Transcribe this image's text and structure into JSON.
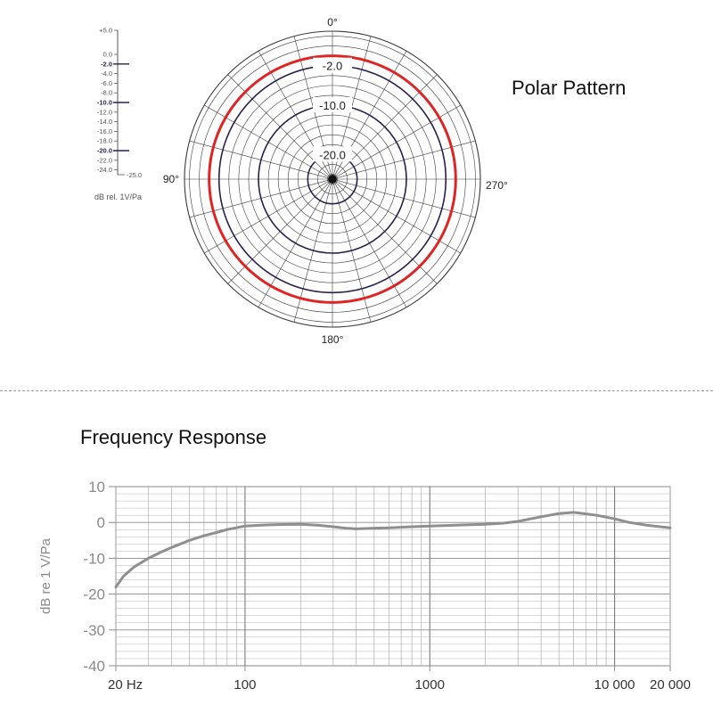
{
  "chart_data": [
    {
      "id": "polar",
      "type": "polar",
      "title": "Polar Pattern",
      "angle_labels": [
        {
          "angle": 0,
          "text": "0°"
        },
        {
          "angle": 90,
          "text": "90°"
        },
        {
          "angle": 180,
          "text": "180°"
        },
        {
          "angle": 270,
          "text": "270°"
        }
      ],
      "rlim": [
        -25.0,
        5.0
      ],
      "rings_db": [
        -25,
        -24,
        -22,
        -20,
        -18,
        -16,
        -14,
        -12,
        -10,
        -8,
        -6,
        -4,
        -2,
        0,
        2,
        4,
        5
      ],
      "ring_labels": [
        {
          "value": -2,
          "text": "-2.0"
        },
        {
          "value": -10,
          "text": "-10.0"
        },
        {
          "value": -20,
          "text": "-20.0"
        }
      ],
      "scale": {
        "ticks": [
          "+5.0",
          "0.0",
          "-2.0",
          "-4.0",
          "-6.0",
          "-8.0",
          "-10.0",
          "-12.0",
          "-14.0",
          "-16.0",
          "-18.0",
          "-20.0",
          "-22.0",
          "-24.0",
          "-25.0"
        ],
        "bold_ticks": [
          "-2.0",
          "-10.0",
          "-20.0"
        ],
        "unit_label": "dB rel. 1V/Pa"
      },
      "spokes_deg_step": 15,
      "series": [
        {
          "name": "",
          "color": "#e02424",
          "value_db": 0.0,
          "pattern": "omnidirectional"
        }
      ],
      "reference_circles": [
        {
          "value_db": -2.0,
          "color": "#2a1f4d"
        },
        {
          "value_db": -10.0,
          "color": "#2a1f4d"
        },
        {
          "value_db": -20.0,
          "color": "#2a1f4d"
        }
      ]
    },
    {
      "id": "frequency",
      "type": "line",
      "title": "Frequency Response",
      "xscale": "log",
      "xlim": [
        20,
        20000
      ],
      "ylim": [
        -40,
        10
      ],
      "ylabel": "dB re 1 V/Pa",
      "xtick_labels": [
        {
          "value": 20,
          "text": "20 Hz"
        },
        {
          "value": 100,
          "text": "100"
        },
        {
          "value": 1000,
          "text": "1000"
        },
        {
          "value": 10000,
          "text": "10 000"
        },
        {
          "value": 20000,
          "text": "20 000"
        }
      ],
      "yticks": [
        10,
        0,
        -10,
        -20,
        -30,
        -40
      ],
      "grid": true,
      "series": [
        {
          "name": "",
          "color": "#8f8f8f",
          "x": [
            20,
            22,
            25,
            30,
            35,
            40,
            50,
            60,
            70,
            80,
            100,
            130,
            150,
            200,
            250,
            300,
            350,
            400,
            500,
            600,
            800,
            1000,
            1500,
            2000,
            2500,
            3000,
            3500,
            4000,
            5000,
            6000,
            7000,
            8000,
            9000,
            10000,
            12000,
            15000,
            20000
          ],
          "y": [
            -18,
            -15,
            -12.5,
            -10,
            -8.3,
            -7,
            -5,
            -3.7,
            -2.8,
            -2,
            -1,
            -0.7,
            -0.6,
            -0.5,
            -0.8,
            -1.2,
            -1.6,
            -1.8,
            -1.6,
            -1.5,
            -1.2,
            -1.0,
            -0.7,
            -0.5,
            -0.2,
            0.3,
            1.0,
            1.6,
            2.5,
            2.8,
            2.4,
            2.0,
            1.5,
            1.0,
            0.0,
            -0.8,
            -1.5
          ]
        }
      ]
    }
  ]
}
